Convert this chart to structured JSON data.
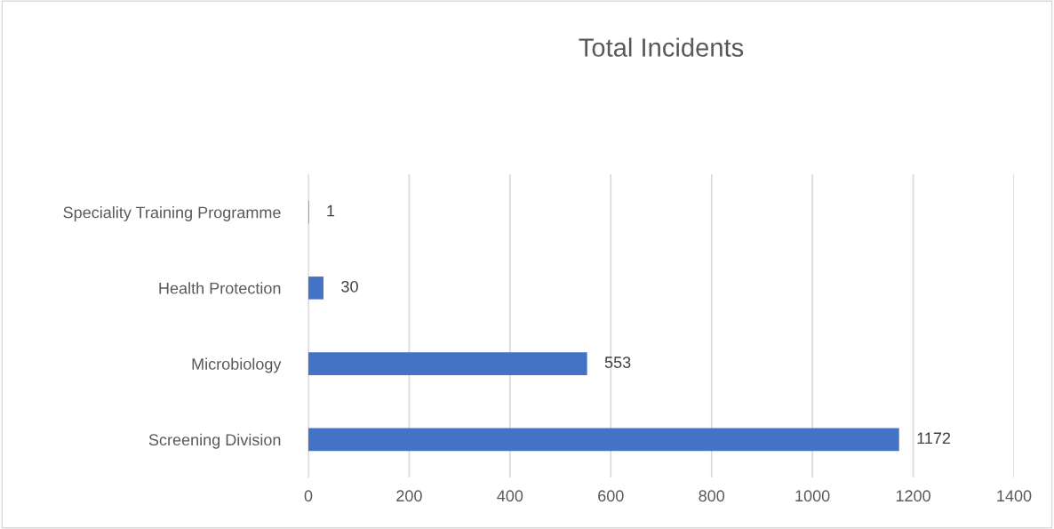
{
  "chart_data": {
    "type": "bar",
    "orientation": "horizontal",
    "title": "Total Incidents",
    "categories": [
      "Speciality Training Programme",
      "Health Protection",
      "Microbiology",
      "Screening Division"
    ],
    "values": [
      1,
      30,
      553,
      1172
    ],
    "color": "#4472c4",
    "xlim": [
      0,
      1400
    ],
    "xticks": [
      0,
      200,
      400,
      600,
      800,
      1000,
      1200,
      1400
    ],
    "grid": "x",
    "data_labels": true
  }
}
